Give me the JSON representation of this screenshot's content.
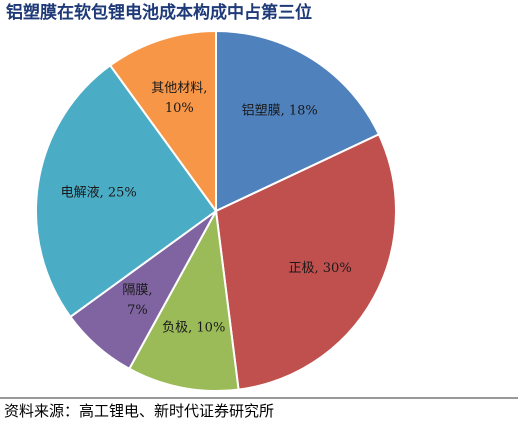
{
  "chart_data": {
    "type": "pie",
    "title": "铝塑膜在软包锂电池成本构成中占第三位",
    "values": [
      18,
      30,
      10,
      7,
      25,
      10
    ],
    "value_labels": [
      "铝塑膜, 18%",
      "正极, 30%",
      "负极, 10%",
      "隔膜,\n7%",
      "电解液, 25%",
      "其他材料,\n10%"
    ],
    "colors": [
      "#4f81bd",
      "#c0504d",
      "#9bbb59",
      "#8064a2",
      "#4bacc6",
      "#f79646"
    ],
    "source": "资料来源：高工锂电、新时代证券研究所"
  }
}
